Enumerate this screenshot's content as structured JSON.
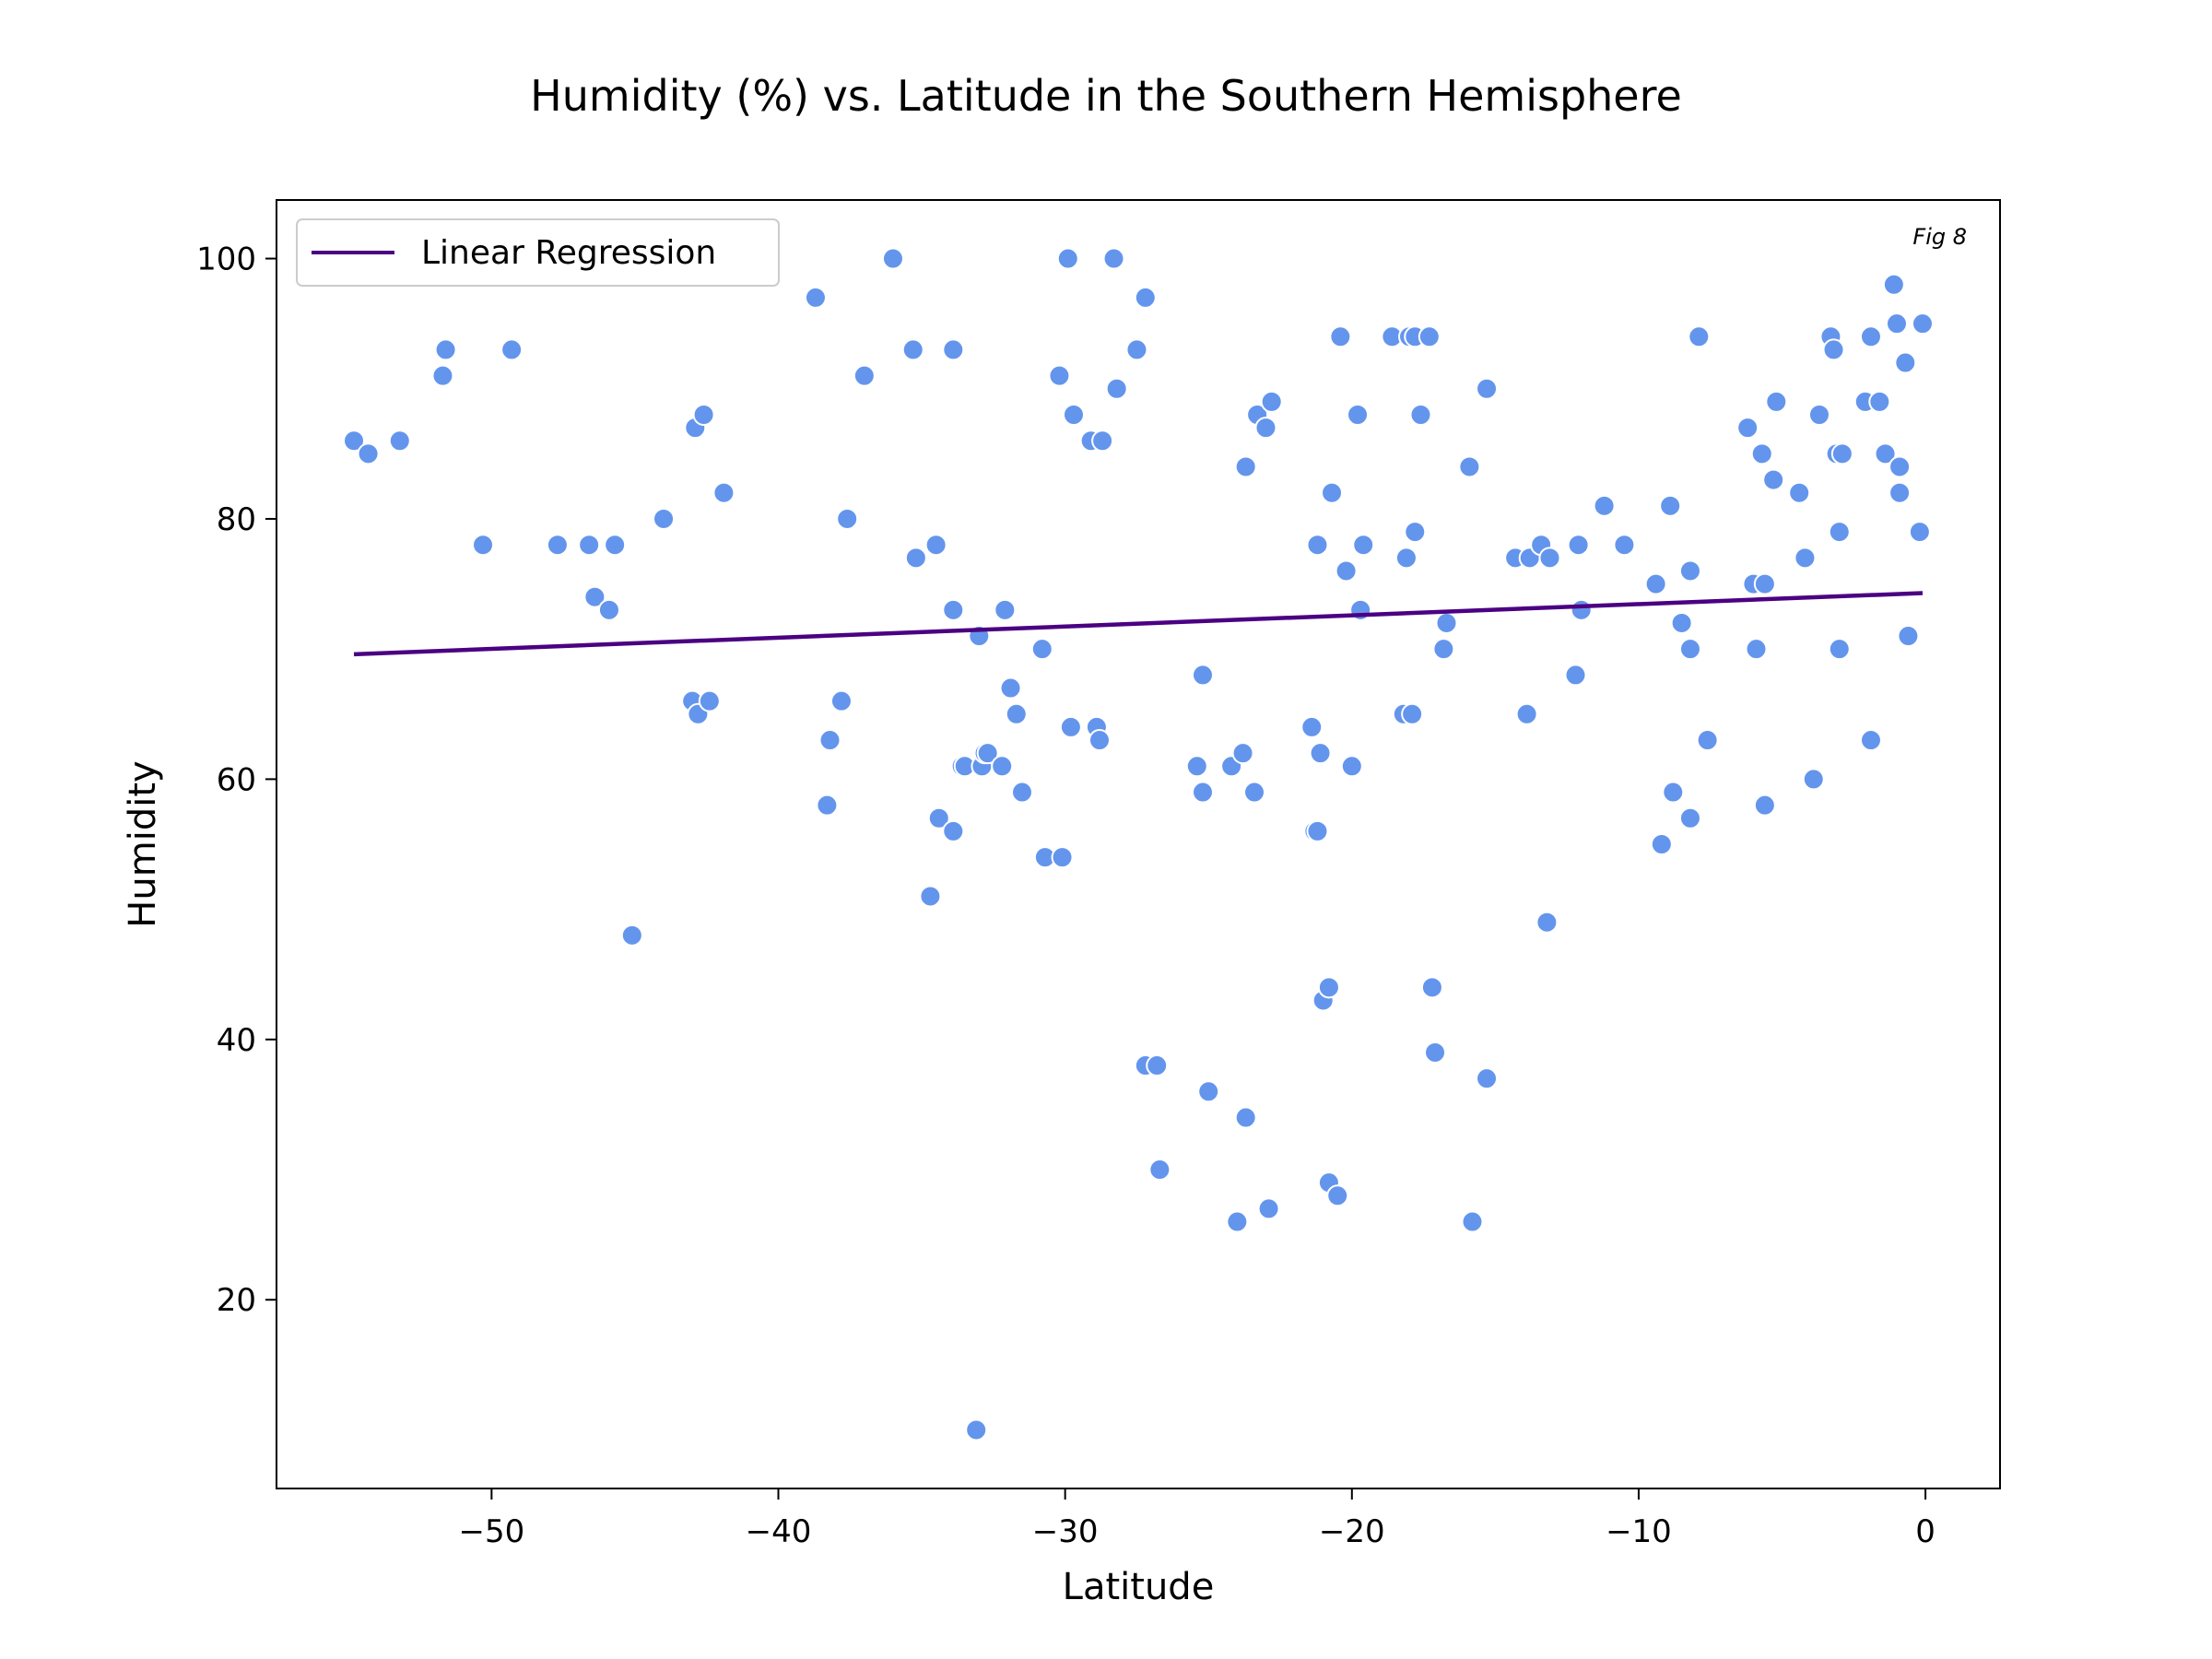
{
  "chart_data": {
    "type": "scatter",
    "title": "Humidity (%) vs. Latitude in the Southern Hemisphere",
    "xlabel": "Latitude",
    "ylabel": "Humidity",
    "annotation": "Fig 8",
    "xlim": [
      -57.5,
      2.6
    ],
    "ylim": [
      5.5,
      104.5
    ],
    "x_ticks": [
      -50,
      -40,
      -30,
      -20,
      -10,
      0
    ],
    "x_tick_labels": [
      "−50",
      "−40",
      "−30",
      "−20",
      "−10",
      "0"
    ],
    "y_ticks": [
      20,
      40,
      60,
      80,
      100
    ],
    "y_tick_labels": [
      "20",
      "40",
      "60",
      "80",
      "100"
    ],
    "legend": {
      "label": "Linear Regression",
      "position": "top-left"
    },
    "grid": false,
    "colors": {
      "points": "#6495ed",
      "point_edge": "#ffffff",
      "regression": "#4b0082"
    },
    "regression": {
      "x": [
        -54.8,
        -0.1
      ],
      "y": [
        69.6,
        74.3
      ]
    },
    "points": [
      [
        -54.8,
        86
      ],
      [
        -54.3,
        85
      ],
      [
        -53.2,
        86
      ],
      [
        -51.7,
        91
      ],
      [
        -51.6,
        93
      ],
      [
        -50.3,
        78
      ],
      [
        -49.3,
        93
      ],
      [
        -47.7,
        78
      ],
      [
        -46.6,
        78
      ],
      [
        -46.4,
        74
      ],
      [
        -45.9,
        73
      ],
      [
        -45.7,
        78
      ],
      [
        -45.1,
        48
      ],
      [
        -44.0,
        80
      ],
      [
        -43.0,
        66
      ],
      [
        -42.9,
        87
      ],
      [
        -42.8,
        65
      ],
      [
        -42.6,
        88
      ],
      [
        -42.4,
        66
      ],
      [
        -41.9,
        82
      ],
      [
        -38.7,
        97
      ],
      [
        -38.3,
        58
      ],
      [
        -38.2,
        63
      ],
      [
        -37.8,
        66
      ],
      [
        -37.6,
        80
      ],
      [
        -37.0,
        91
      ],
      [
        -36.0,
        100
      ],
      [
        -35.3,
        93
      ],
      [
        -35.2,
        77
      ],
      [
        -34.7,
        51
      ],
      [
        -34.5,
        78
      ],
      [
        -34.4,
        57
      ],
      [
        -33.9,
        93
      ],
      [
        -33.9,
        73
      ],
      [
        -33.9,
        56
      ],
      [
        -33.6,
        61
      ],
      [
        -33.5,
        61
      ],
      [
        -33.1,
        10
      ],
      [
        -33.0,
        71
      ],
      [
        -32.9,
        61
      ],
      [
        -32.8,
        62
      ],
      [
        -32.7,
        62
      ],
      [
        -32.2,
        61
      ],
      [
        -32.1,
        73
      ],
      [
        -31.9,
        67
      ],
      [
        -31.7,
        65
      ],
      [
        -31.5,
        59
      ],
      [
        -30.8,
        70
      ],
      [
        -30.7,
        54
      ],
      [
        -30.2,
        91
      ],
      [
        -30.1,
        54
      ],
      [
        -29.9,
        100
      ],
      [
        -29.8,
        64
      ],
      [
        -29.7,
        88
      ],
      [
        -29.1,
        86
      ],
      [
        -28.9,
        64
      ],
      [
        -28.8,
        63
      ],
      [
        -28.7,
        86
      ],
      [
        -28.3,
        100
      ],
      [
        -28.2,
        90
      ],
      [
        -27.5,
        93
      ],
      [
        -27.2,
        38
      ],
      [
        -27.2,
        97
      ],
      [
        -26.8,
        38
      ],
      [
        -26.7,
        30
      ],
      [
        -25.4,
        61
      ],
      [
        -25.2,
        68
      ],
      [
        -25.2,
        59
      ],
      [
        -25.0,
        36
      ],
      [
        -24.2,
        61
      ],
      [
        -24.0,
        26
      ],
      [
        -23.8,
        62
      ],
      [
        -23.7,
        34
      ],
      [
        -23.7,
        84
      ],
      [
        -23.4,
        59
      ],
      [
        -23.3,
        88
      ],
      [
        -23.0,
        87
      ],
      [
        -22.9,
        27
      ],
      [
        -22.8,
        89
      ],
      [
        -21.4,
        64
      ],
      [
        -21.3,
        56
      ],
      [
        -21.2,
        56
      ],
      [
        -21.2,
        78
      ],
      [
        -21.1,
        62
      ],
      [
        -21.0,
        43
      ],
      [
        -20.8,
        44
      ],
      [
        -20.8,
        29
      ],
      [
        -20.7,
        82
      ],
      [
        -20.5,
        28
      ],
      [
        -20.4,
        94
      ],
      [
        -20.2,
        76
      ],
      [
        -20.0,
        61
      ],
      [
        -19.8,
        88
      ],
      [
        -19.7,
        73
      ],
      [
        -19.6,
        78
      ],
      [
        -18.6,
        94
      ],
      [
        -18.2,
        65
      ],
      [
        -18.1,
        77
      ],
      [
        -18.0,
        94
      ],
      [
        -17.9,
        65
      ],
      [
        -17.8,
        79
      ],
      [
        -17.8,
        94
      ],
      [
        -17.6,
        88
      ],
      [
        -17.3,
        94
      ],
      [
        -17.2,
        44
      ],
      [
        -17.1,
        39
      ],
      [
        -16.8,
        70
      ],
      [
        -16.7,
        72
      ],
      [
        -15.9,
        84
      ],
      [
        -15.8,
        26
      ],
      [
        -15.3,
        90
      ],
      [
        -15.3,
        37
      ],
      [
        -14.3,
        77
      ],
      [
        -13.9,
        65
      ],
      [
        -13.8,
        77
      ],
      [
        -13.4,
        78
      ],
      [
        -13.2,
        49
      ],
      [
        -13.1,
        77
      ],
      [
        -12.2,
        68
      ],
      [
        -12.1,
        78
      ],
      [
        -12.0,
        73
      ],
      [
        -11.2,
        81
      ],
      [
        -10.5,
        78
      ],
      [
        -9.4,
        75
      ],
      [
        -9.2,
        55
      ],
      [
        -8.9,
        81
      ],
      [
        -8.8,
        59
      ],
      [
        -8.5,
        72
      ],
      [
        -8.2,
        70
      ],
      [
        -8.2,
        57
      ],
      [
        -8.2,
        76
      ],
      [
        -7.9,
        94
      ],
      [
        -7.6,
        63
      ],
      [
        -6.2,
        87
      ],
      [
        -6.0,
        75
      ],
      [
        -5.9,
        70
      ],
      [
        -5.7,
        85
      ],
      [
        -5.6,
        58
      ],
      [
        -5.6,
        75
      ],
      [
        -5.3,
        83
      ],
      [
        -5.2,
        89
      ],
      [
        -4.4,
        82
      ],
      [
        -4.2,
        77
      ],
      [
        -3.9,
        60
      ],
      [
        -3.7,
        88
      ],
      [
        -3.3,
        94
      ],
      [
        -3.2,
        93
      ],
      [
        -3.1,
        85
      ],
      [
        -3.0,
        79
      ],
      [
        -3.0,
        70
      ],
      [
        -2.9,
        85
      ],
      [
        -2.1,
        89
      ],
      [
        -1.9,
        63
      ],
      [
        -1.9,
        94
      ],
      [
        -1.6,
        89
      ],
      [
        -1.4,
        85
      ],
      [
        -1.1,
        98
      ],
      [
        -1.0,
        95
      ],
      [
        -0.9,
        82
      ],
      [
        -0.9,
        84
      ],
      [
        -0.7,
        92
      ],
      [
        -0.6,
        71
      ],
      [
        -0.2,
        79
      ],
      [
        -0.1,
        95
      ]
    ]
  }
}
